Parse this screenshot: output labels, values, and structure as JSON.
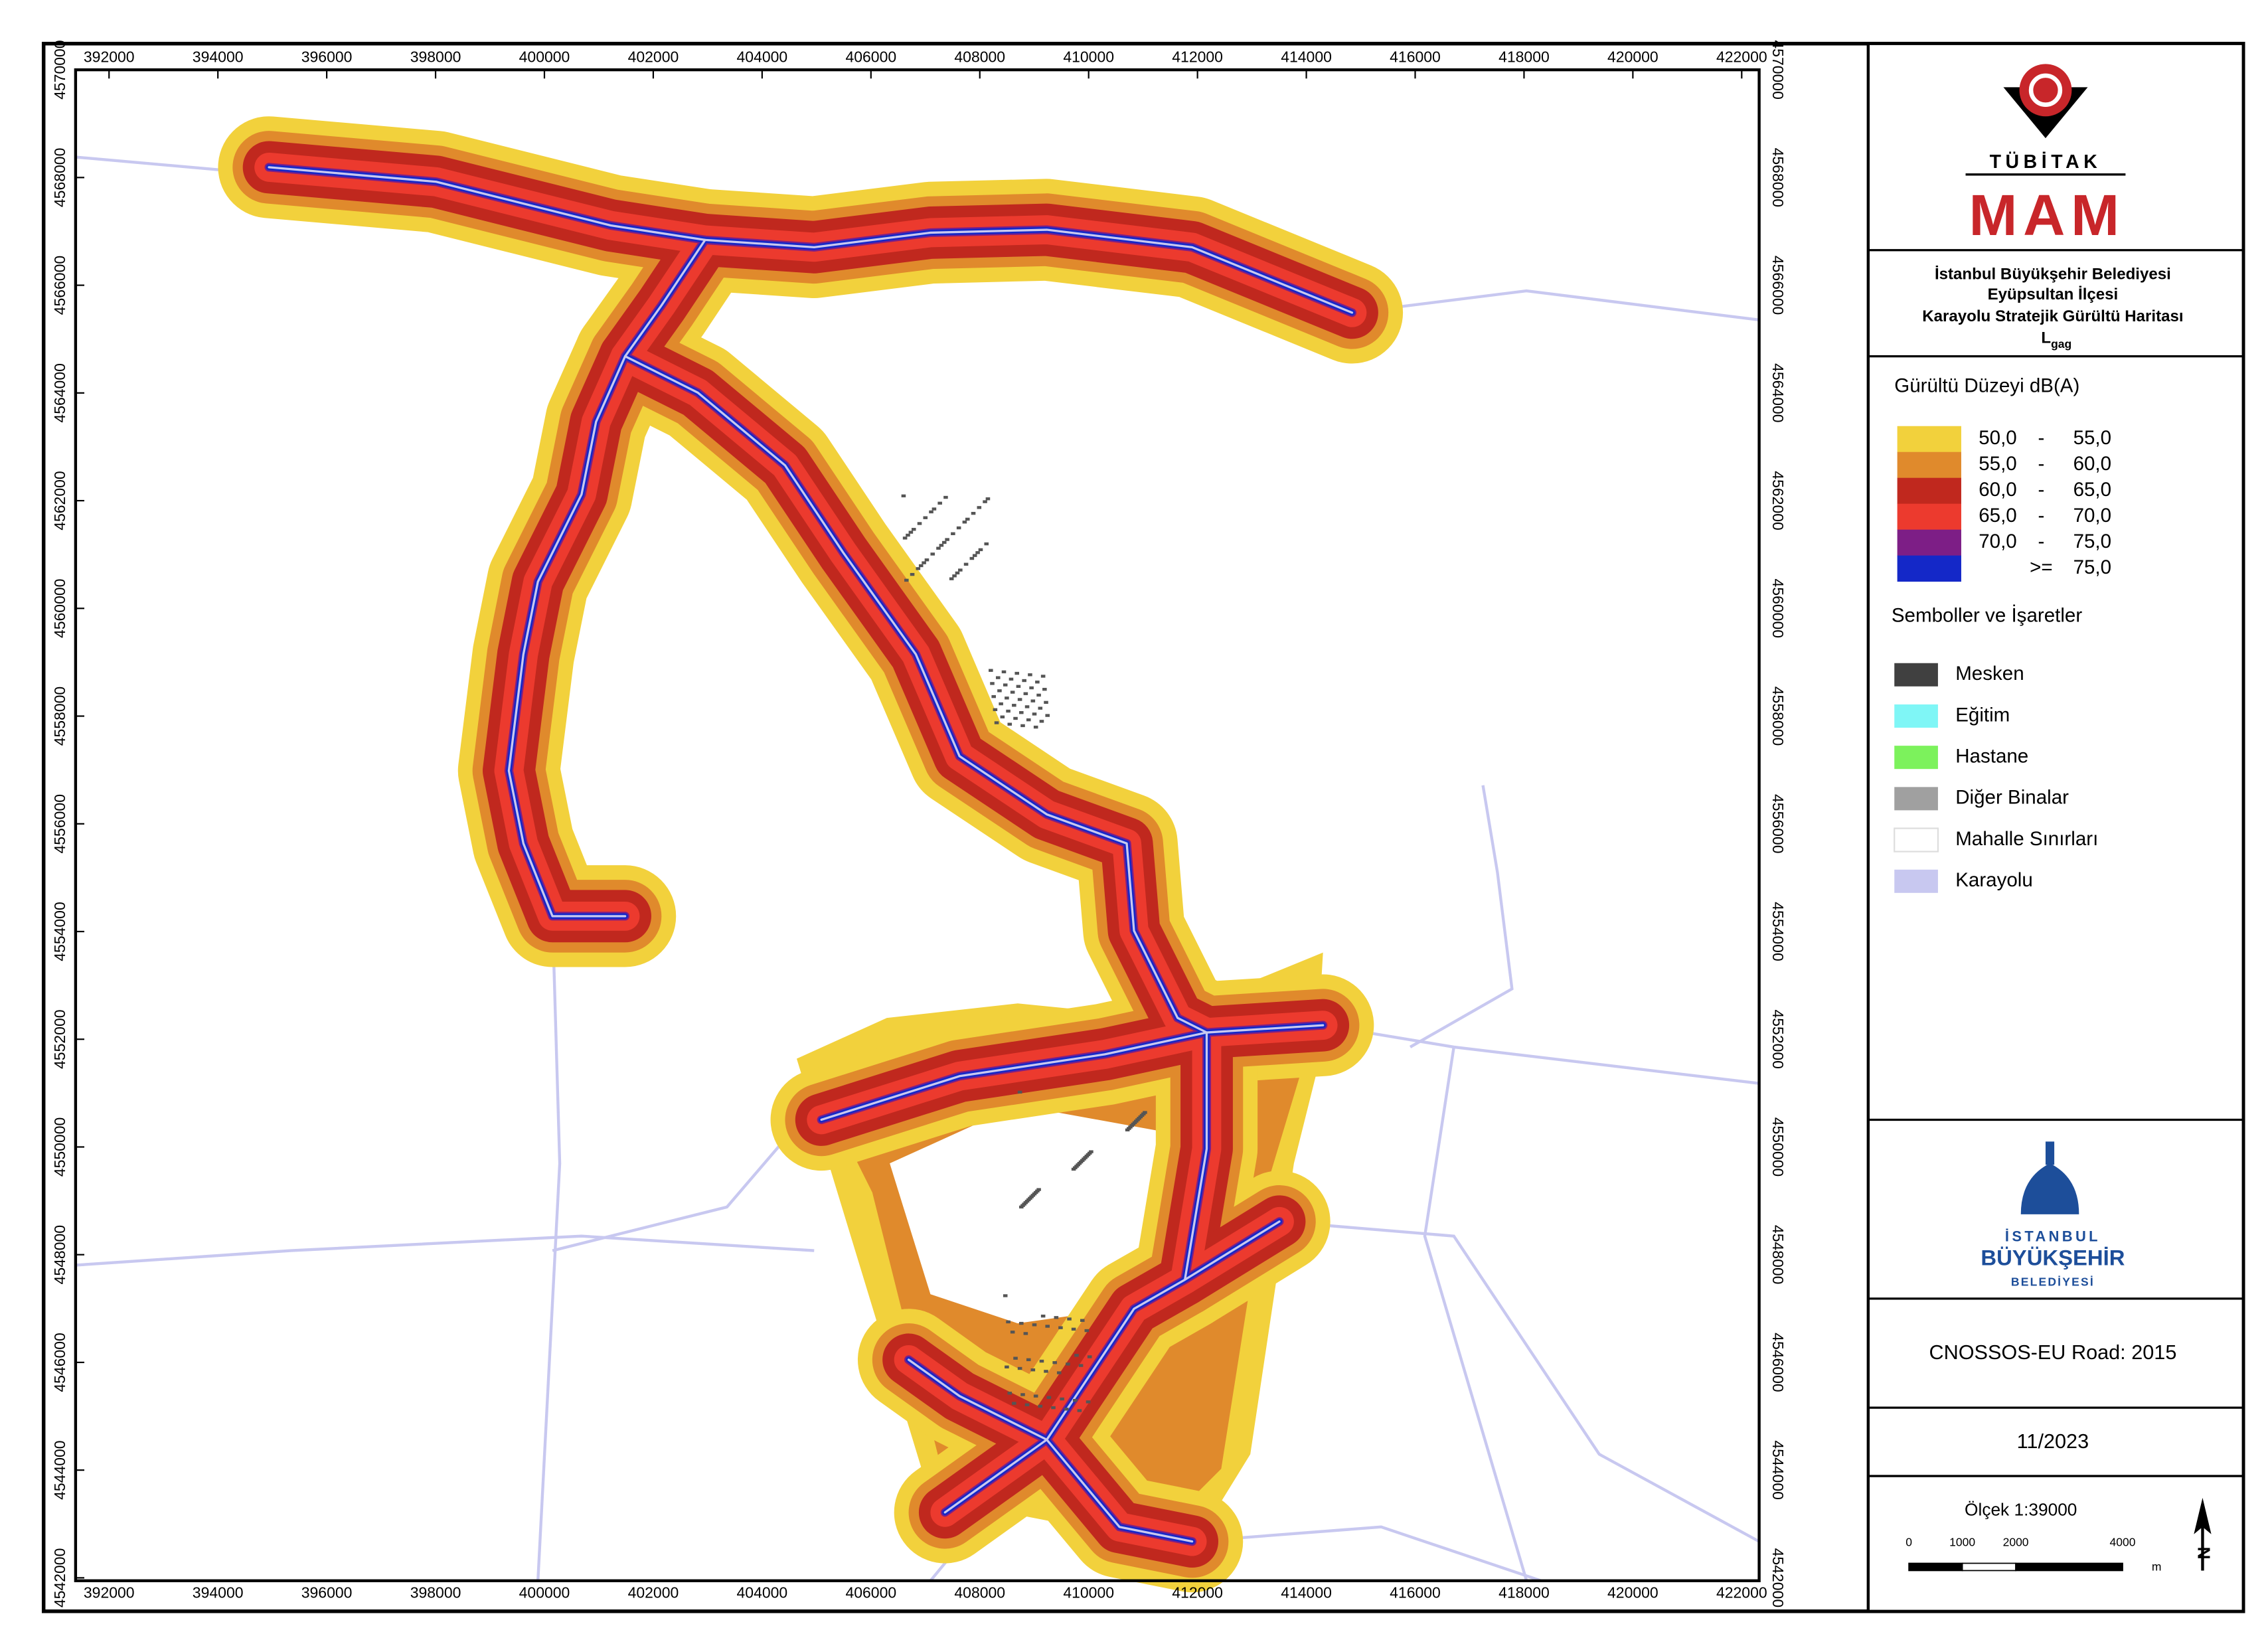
{
  "map": {
    "x_ticks": [
      392000,
      394000,
      396000,
      398000,
      400000,
      402000,
      404000,
      406000,
      408000,
      410000,
      412000,
      414000,
      416000,
      418000,
      420000,
      422000
    ],
    "y_ticks": [
      4570000,
      4568000,
      4566000,
      4564000,
      4562000,
      4560000,
      4558000,
      4556000,
      4554000,
      4552000,
      4550000,
      4548000,
      4546000,
      4544000,
      4542000
    ]
  },
  "logo": {
    "tubitak": "TÜBİTAK",
    "mam": "MAM"
  },
  "title": {
    "line1": "İstanbul Büyükşehir Belediyesi",
    "line2": "Eyüpsultan İlçesi",
    "line3": "Karayolu Stratejik Gürültü Haritası",
    "symbol": "L",
    "subscript": "gag"
  },
  "legend": {
    "title": "Gürültü Düzeyi dB(A)",
    "items": [
      {
        "low": "50,0",
        "sep": "-",
        "high": "55,0",
        "color": "#f2d13c"
      },
      {
        "low": "55,0",
        "sep": "-",
        "high": "60,0",
        "color": "#e08a2c"
      },
      {
        "low": "60,0",
        "sep": "-",
        "high": "65,0",
        "color": "#c0281e"
      },
      {
        "low": "65,0",
        "sep": "-",
        "high": "70,0",
        "color": "#ec3a2e"
      },
      {
        "low": "70,0",
        "sep": "-",
        "high": "75,0",
        "color": "#7d1e86"
      },
      {
        "sep": ">=",
        "high": "75,0",
        "color": "#1428c8"
      }
    ]
  },
  "symbols": {
    "title": "Semboller ve İşaretler",
    "items": [
      {
        "label": "Mesken",
        "color": "#404040"
      },
      {
        "label": "Eğitim",
        "color": "#7ff6f6"
      },
      {
        "label": "Hastane",
        "color": "#7cf25c"
      },
      {
        "label": "Diğer Binalar",
        "color": "#a0a0a0"
      },
      {
        "label": "Mahalle Sınırları",
        "color": "#ffffff"
      },
      {
        "label": "Karayolu",
        "color": "#c8c8f0"
      }
    ]
  },
  "ibb": {
    "line1": "İSTANBUL",
    "line2": "BÜYÜKŞEHİR",
    "line3": "BELEDİYESİ"
  },
  "model": "CNOSSOS-EU Road: 2015",
  "date": "11/2023",
  "scale": {
    "label": "Ölçek 1:39000",
    "ticks": [
      0,
      1000,
      2000,
      4000
    ],
    "unit": "m",
    "north": "N"
  }
}
